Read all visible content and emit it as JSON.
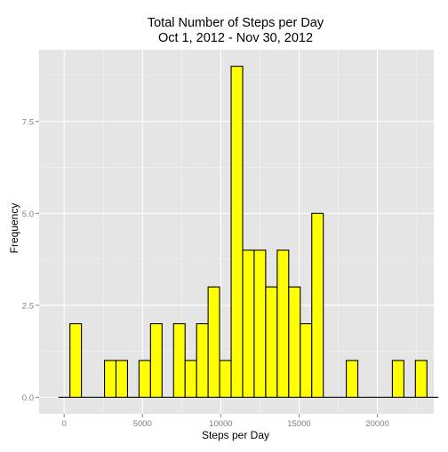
{
  "chart_data": {
    "type": "bar",
    "title_line1": "Total Number of Steps per Day",
    "title_line2": "Oct 1, 2012 - Nov 30, 2012",
    "xlabel": "Steps per Day",
    "ylabel": "Frequency",
    "xlim": [
      -1600,
      23600
    ],
    "ylim": [
      -0.45,
      9.45
    ],
    "x_ticks": [
      0,
      5000,
      10000,
      15000,
      20000
    ],
    "y_ticks": [
      0,
      2.5,
      5,
      7.5
    ],
    "x_tick_labels": [
      "0",
      "5000",
      "10000",
      "15000",
      "20000"
    ],
    "y_tick_labels": [
      "0.0",
      "2.5",
      "5.0",
      "7.5"
    ],
    "bin_width": 735,
    "bins": [
      {
        "x_start": -368,
        "count": 0
      },
      {
        "x_start": 368,
        "count": 2
      },
      {
        "x_start": 1103,
        "count": 0
      },
      {
        "x_start": 1838,
        "count": 0
      },
      {
        "x_start": 2574,
        "count": 1
      },
      {
        "x_start": 3309,
        "count": 1
      },
      {
        "x_start": 4044,
        "count": 0
      },
      {
        "x_start": 4779,
        "count": 1
      },
      {
        "x_start": 5515,
        "count": 2
      },
      {
        "x_start": 6250,
        "count": 0
      },
      {
        "x_start": 6985,
        "count": 2
      },
      {
        "x_start": 7721,
        "count": 1
      },
      {
        "x_start": 8456,
        "count": 2
      },
      {
        "x_start": 9191,
        "count": 3
      },
      {
        "x_start": 9926,
        "count": 1
      },
      {
        "x_start": 10662,
        "count": 9
      },
      {
        "x_start": 11397,
        "count": 4
      },
      {
        "x_start": 12132,
        "count": 4
      },
      {
        "x_start": 12868,
        "count": 3
      },
      {
        "x_start": 13603,
        "count": 4
      },
      {
        "x_start": 14338,
        "count": 3
      },
      {
        "x_start": 15074,
        "count": 2
      },
      {
        "x_start": 15809,
        "count": 5
      },
      {
        "x_start": 16544,
        "count": 0
      },
      {
        "x_start": 17279,
        "count": 0
      },
      {
        "x_start": 18015,
        "count": 1
      },
      {
        "x_start": 18750,
        "count": 0
      },
      {
        "x_start": 19485,
        "count": 0
      },
      {
        "x_start": 20221,
        "count": 0
      },
      {
        "x_start": 20956,
        "count": 1
      },
      {
        "x_start": 21691,
        "count": 0
      },
      {
        "x_start": 22426,
        "count": 1
      },
      {
        "x_start": 23162,
        "count": 0
      }
    ],
    "grid": true,
    "colors": {
      "panel_background": "#e5e5e5",
      "grid_major": "#ffffff",
      "grid_minor": "#f2f2f2",
      "bar_fill": "#ffff00",
      "bar_stroke": "#000000",
      "text": "#000000",
      "tick_text": "#7f7f7f"
    }
  }
}
